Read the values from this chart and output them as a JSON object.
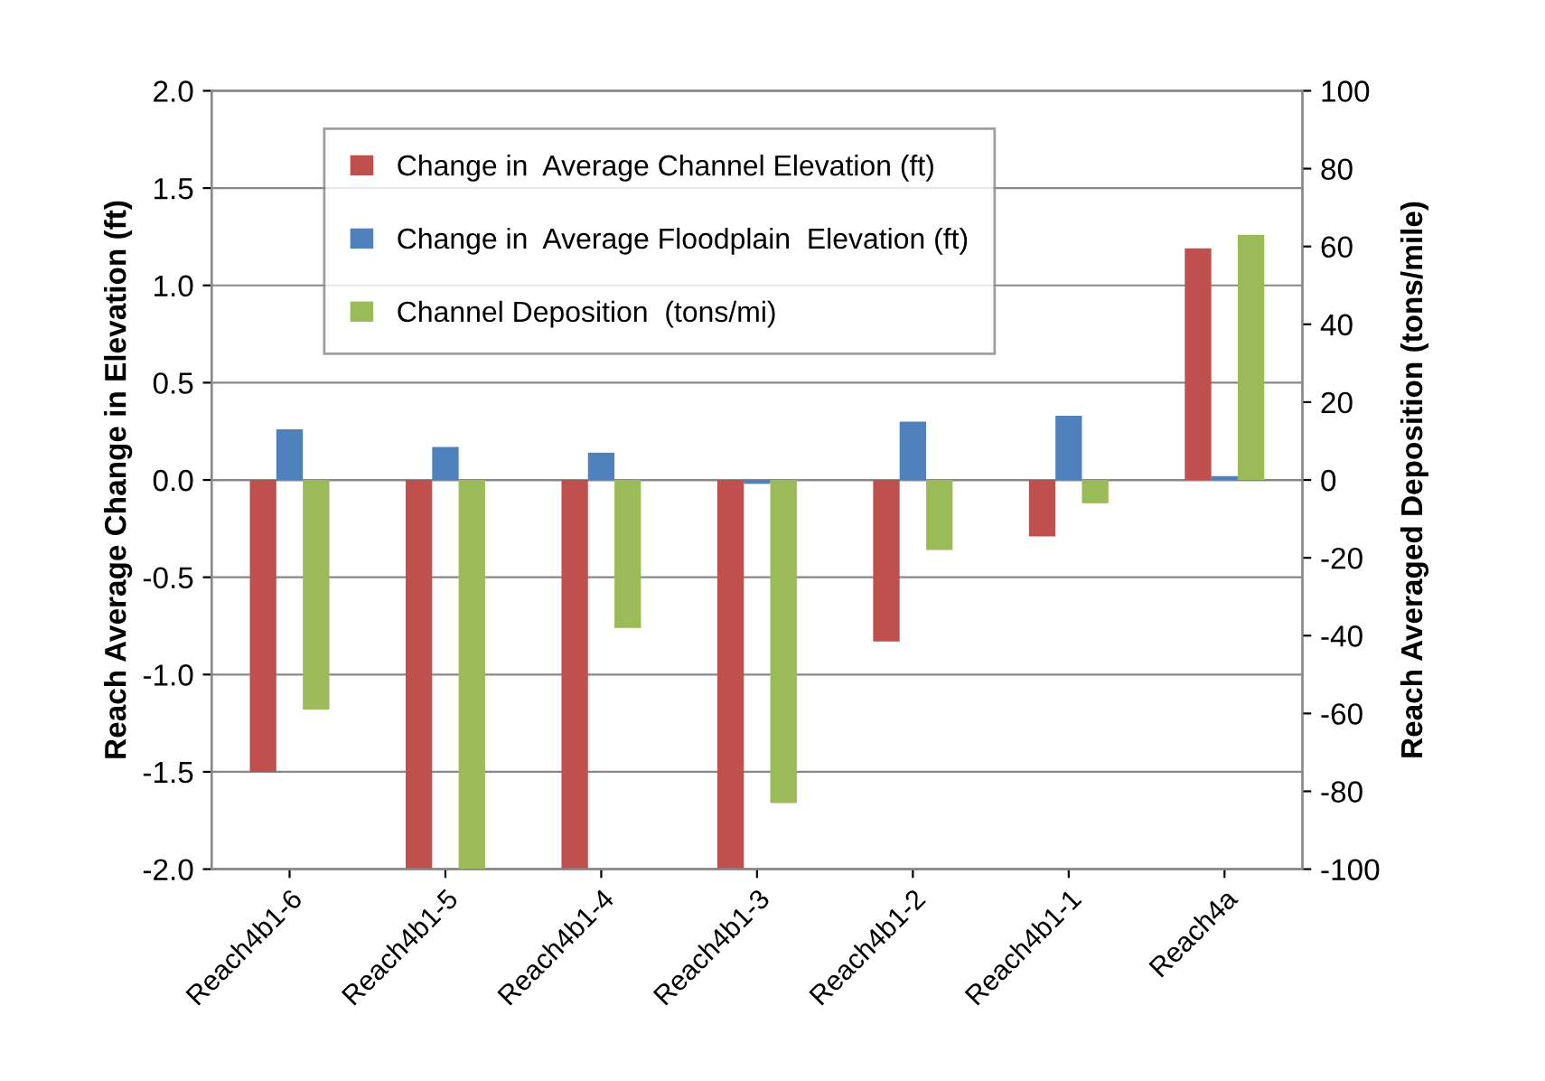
{
  "chart_data": {
    "type": "bar",
    "ylabel": "Reach Average Change in Elevation (ft)",
    "y2label": "Reach Averaged Deposition (tons/mile)",
    "categories": [
      "Reach4b1-6",
      "Reach4b1-5",
      "Reach4b1-4",
      "Reach4b1-3",
      "Reach4b1-2",
      "Reach4b1-1",
      "Reach4a"
    ],
    "series": [
      {
        "name": "Change in  Average Channel Elevation (ft)",
        "color": "#c0504d",
        "values": [
          -1.5,
          -2.0,
          -2.0,
          -2.0,
          -0.83,
          -0.29,
          1.19
        ]
      },
      {
        "name": "Change in  Average Floodplain  Elevation (ft)",
        "color": "#4f81bd",
        "values": [
          0.26,
          0.17,
          0.14,
          -0.02,
          0.3,
          0.33,
          0.02
        ]
      },
      {
        "name": "Channel Deposition  (tons/mi)",
        "color": "#9bbb59",
        "axis": "y2",
        "values": [
          -59,
          -100,
          -38,
          -83,
          -18,
          -6,
          63
        ]
      }
    ],
    "ylim": [
      -2.0,
      2.0
    ],
    "yticks": [
      {
        "value": -2,
        "label": "-2.0"
      },
      {
        "value": -1.5,
        "label": "-1.5"
      },
      {
        "value": -1,
        "label": "-1.0"
      },
      {
        "value": -0.5,
        "label": "-0.5"
      },
      {
        "value": 0,
        "label": "0.0"
      },
      {
        "value": 0.5,
        "label": "0.5"
      },
      {
        "value": 1,
        "label": "1.0"
      },
      {
        "value": 1.5,
        "label": "1.5"
      },
      {
        "value": 2,
        "label": "2.0"
      }
    ],
    "y2lim": [
      -100,
      100
    ],
    "y2ticks": [
      -100,
      -80,
      -60,
      -40,
      -20,
      0,
      20,
      40,
      60,
      80,
      100
    ],
    "grid": "y",
    "legend": "top left"
  }
}
